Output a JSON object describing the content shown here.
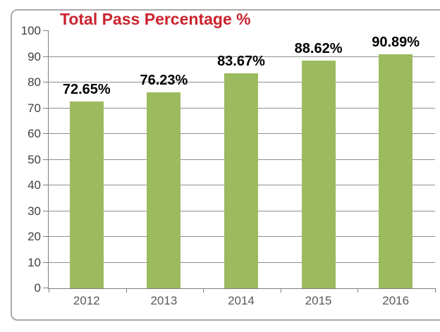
{
  "chart_data": {
    "type": "bar",
    "title": "Total Pass Percentage %",
    "categories": [
      "2012",
      "2013",
      "2014",
      "2015",
      "2016"
    ],
    "values": [
      72.65,
      76.23,
      83.67,
      88.62,
      90.89
    ],
    "data_labels": [
      "72.65%",
      "76.23%",
      "83.67%",
      "88.62%",
      "90.89%"
    ],
    "ylim": [
      0,
      100
    ],
    "ytick_step": 10,
    "ytick_labels": [
      "0",
      "10",
      "20",
      "30",
      "40",
      "50",
      "60",
      "70",
      "80",
      "90",
      "100"
    ],
    "grid": "horizontal",
    "legend": "none",
    "colors": {
      "bar_fill": "#9cba5e",
      "title": "#c9242e",
      "gridline": "#8f8f8f",
      "axis": "#7f7f7f",
      "frame_border": "#a9a9a9",
      "x_label": "#595959",
      "y_label": "#3f3f3f",
      "data_label": "#000000",
      "background": "#ffffff"
    }
  }
}
